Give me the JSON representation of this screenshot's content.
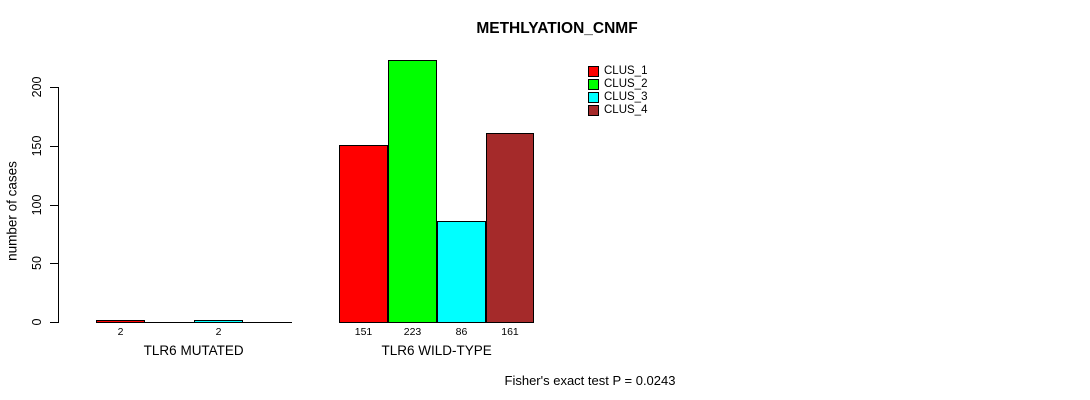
{
  "title": "METHLYATION_CNMF",
  "footer": "Fisher's exact test P = 0.0243",
  "chart_data": {
    "type": "bar",
    "title": "METHLYATION_CNMF",
    "xlabel": "",
    "ylabel": "number of cases",
    "yticks": [
      0,
      50,
      100,
      150,
      200
    ],
    "ylim": [
      0,
      225
    ],
    "grid": false,
    "legend_position": "top-right",
    "categories": [
      "TLR6 MUTATED",
      "TLR6 WILD-TYPE"
    ],
    "series": [
      {
        "name": "CLUS_1",
        "color": "#ff0000",
        "values": [
          2,
          151
        ]
      },
      {
        "name": "CLUS_2",
        "color": "#00ff00",
        "values": [
          0,
          223
        ]
      },
      {
        "name": "CLUS_3",
        "color": "#00ffff",
        "values": [
          2,
          86
        ]
      },
      {
        "name": "CLUS_4",
        "color": "#a52a2a",
        "values": [
          0,
          161
        ]
      }
    ],
    "bar_labels": [
      [
        "2",
        "",
        "2",
        ""
      ],
      [
        "151",
        "223",
        "86",
        "161"
      ]
    ],
    "annotation": "Fisher's exact test P = 0.0243"
  }
}
